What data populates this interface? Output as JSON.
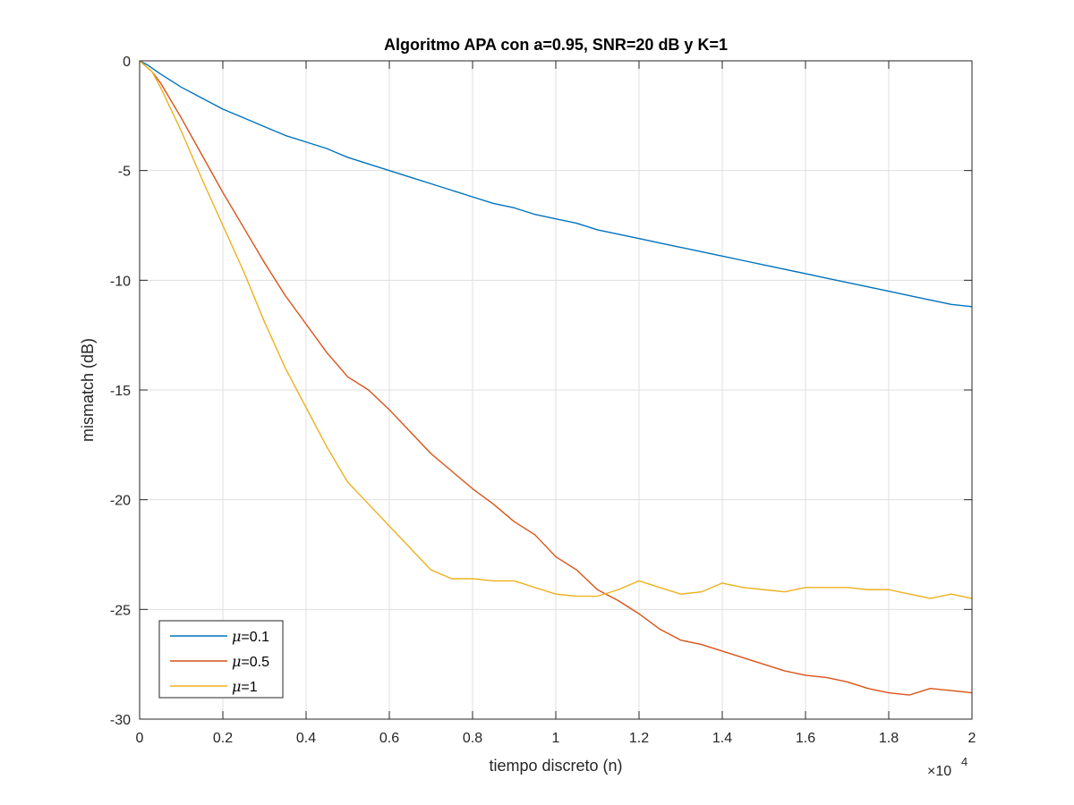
{
  "chart_data": {
    "type": "line",
    "title": "Algoritmo APA con a=0.95, SNR=20 dB y K=1",
    "xlabel": "tiempo discreto (n)",
    "ylabel": "mismatch (dB)",
    "x_exponent_label": "×10",
    "x_exponent_power": "4",
    "xlim": [
      0,
      20000
    ],
    "ylim": [
      -30,
      0
    ],
    "x_ticks": [
      0,
      2000,
      4000,
      6000,
      8000,
      10000,
      12000,
      14000,
      16000,
      18000,
      20000
    ],
    "x_tick_labels": [
      "0",
      "0.2",
      "0.4",
      "0.6",
      "0.8",
      "1",
      "1.2",
      "1.4",
      "1.6",
      "1.8",
      "2"
    ],
    "y_ticks": [
      0,
      -5,
      -10,
      -15,
      -20,
      -25,
      -30
    ],
    "y_tick_labels": [
      "0",
      "-5",
      "-10",
      "-15",
      "-20",
      "-25",
      "-30"
    ],
    "grid": true,
    "legend_position": "bottom-left",
    "series": [
      {
        "name": "=0.1",
        "symbol": "μ",
        "color": "#0072BD",
        "x": [
          0,
          200,
          500,
          1000,
          1500,
          2000,
          2500,
          3000,
          3500,
          4000,
          4500,
          5000,
          5500,
          6000,
          6500,
          7000,
          7500,
          8000,
          8500,
          9000,
          9500,
          10000,
          10500,
          11000,
          11500,
          12000,
          12500,
          13000,
          13500,
          14000,
          14500,
          15000,
          15500,
          16000,
          16500,
          17000,
          17500,
          18000,
          18500,
          19000,
          19500,
          20000
        ],
        "y": [
          0,
          -0.2,
          -0.6,
          -1.2,
          -1.7,
          -2.2,
          -2.6,
          -3.0,
          -3.4,
          -3.7,
          -4.0,
          -4.4,
          -4.7,
          -5.0,
          -5.3,
          -5.6,
          -5.9,
          -6.2,
          -6.5,
          -6.7,
          -7.0,
          -7.2,
          -7.4,
          -7.7,
          -7.9,
          -8.1,
          -8.3,
          -8.5,
          -8.7,
          -8.9,
          -9.1,
          -9.3,
          -9.5,
          -9.7,
          -9.9,
          -10.1,
          -10.3,
          -10.5,
          -10.7,
          -10.9,
          -11.1,
          -11.2
        ]
      },
      {
        "name": "=0.5",
        "symbol": "μ",
        "color": "#D95319",
        "x": [
          0,
          300,
          500,
          1000,
          1500,
          2000,
          2500,
          3000,
          3500,
          4000,
          4500,
          5000,
          5500,
          6000,
          6500,
          7000,
          7500,
          8000,
          8500,
          9000,
          9500,
          10000,
          10500,
          11000,
          11500,
          12000,
          12500,
          13000,
          13500,
          14000,
          14500,
          15000,
          15500,
          16000,
          16500,
          17000,
          17500,
          18000,
          18500,
          19000,
          19500,
          20000
        ],
        "y": [
          0,
          -0.5,
          -1.0,
          -2.6,
          -4.3,
          -6.0,
          -7.6,
          -9.2,
          -10.7,
          -12.0,
          -13.3,
          -14.4,
          -15.0,
          -15.9,
          -16.9,
          -17.9,
          -18.7,
          -19.5,
          -20.2,
          -21.0,
          -21.6,
          -22.6,
          -23.2,
          -24.1,
          -24.6,
          -25.2,
          -25.9,
          -26.4,
          -26.6,
          -26.9,
          -27.2,
          -27.5,
          -27.8,
          -28.0,
          -28.1,
          -28.3,
          -28.6,
          -28.8,
          -28.9,
          -28.6,
          -28.7,
          -28.8
        ]
      },
      {
        "name": "=1",
        "symbol": "μ",
        "color": "#EDB120",
        "x": [
          0,
          300,
          500,
          1000,
          1500,
          2000,
          2500,
          3000,
          3500,
          4000,
          4500,
          5000,
          5500,
          6000,
          6500,
          7000,
          7500,
          8000,
          8500,
          9000,
          9500,
          10000,
          10500,
          11000,
          11500,
          12000,
          12500,
          13000,
          13500,
          14000,
          14500,
          15000,
          15500,
          16000,
          16500,
          17000,
          17500,
          18000,
          18500,
          19000,
          19500,
          20000
        ],
        "y": [
          0,
          -0.5,
          -1.2,
          -3.2,
          -5.4,
          -7.5,
          -9.6,
          -11.9,
          -14.0,
          -15.8,
          -17.6,
          -19.2,
          -20.2,
          -21.2,
          -22.2,
          -23.2,
          -23.6,
          -23.6,
          -23.7,
          -23.7,
          -24.0,
          -24.3,
          -24.4,
          -24.4,
          -24.1,
          -23.7,
          -24.0,
          -24.3,
          -24.2,
          -23.8,
          -24.0,
          -24.1,
          -24.2,
          -24.0,
          -24.0,
          -24.0,
          -24.1,
          -24.1,
          -24.3,
          -24.5,
          -24.3,
          -24.5
        ]
      }
    ]
  }
}
